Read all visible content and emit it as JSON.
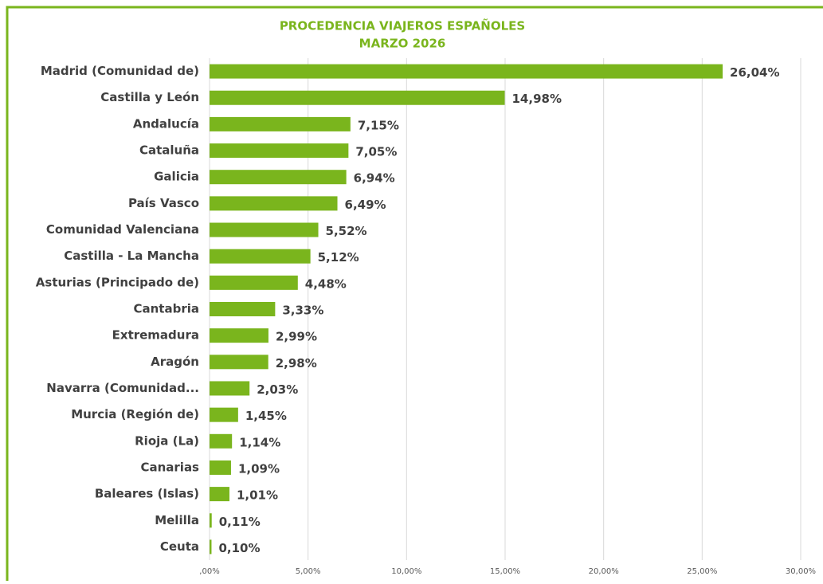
{
  "chart_data": {
    "type": "bar",
    "orientation": "horizontal",
    "title": "PROCEDENCIA VIAJEROS ESPAÑOLES",
    "subtitle": "MARZO 2026",
    "categories": [
      "Madrid (Comunidad de)",
      "Castilla y León",
      "Andalucía",
      "Cataluña",
      "Galicia",
      "País Vasco",
      "Comunidad Valenciana",
      "Castilla - La Mancha",
      "Asturias (Principado de)",
      "Cantabria",
      "Extremadura",
      "Aragón",
      "Navarra (Comunidad...",
      "Murcia (Región de)",
      "Rioja (La)",
      "Canarias",
      "Baleares (Islas)",
      "Melilla",
      "Ceuta"
    ],
    "values": [
      26.04,
      14.98,
      7.15,
      7.05,
      6.94,
      6.49,
      5.52,
      5.12,
      4.48,
      3.33,
      2.99,
      2.98,
      2.03,
      1.45,
      1.14,
      1.09,
      1.01,
      0.11,
      0.1
    ],
    "value_labels": [
      "26,04%",
      "14,98%",
      "7,15%",
      "7,05%",
      "6,94%",
      "6,49%",
      "5,52%",
      "5,12%",
      "4,48%",
      "3,33%",
      "2,99%",
      "2,98%",
      "2,03%",
      "1,45%",
      "1,14%",
      "1,09%",
      "1,01%",
      "0,11%",
      "0,10%"
    ],
    "color": "#7ab51d",
    "xlim": [
      0,
      30
    ],
    "xticks": [
      {
        "value": 0,
        "label": ",00%"
      },
      {
        "value": 5,
        "label": "5,00%"
      },
      {
        "value": 10,
        "label": "10,00%"
      },
      {
        "value": 15,
        "label": "15,00%"
      },
      {
        "value": 20,
        "label": "20,00%"
      },
      {
        "value": 25,
        "label": "25,00%"
      },
      {
        "value": 30,
        "label": "30,00%"
      }
    ],
    "grid": true
  }
}
